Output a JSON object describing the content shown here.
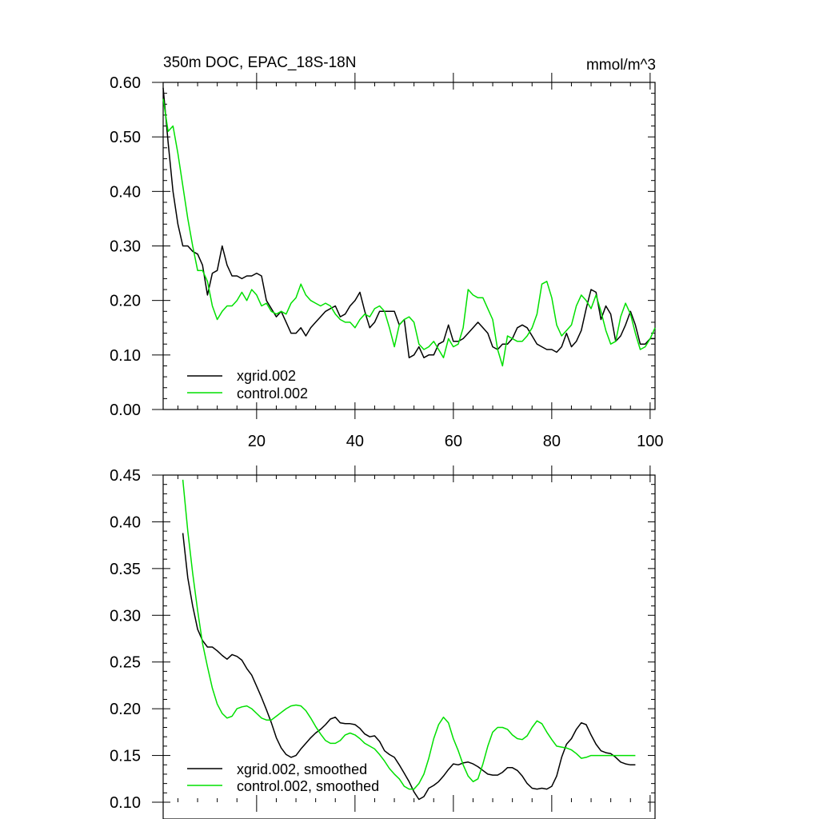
{
  "chart_data": [
    {
      "type": "line",
      "title": "350m DOC, EPAC_18S-18N",
      "units": "mmol/m^3",
      "xlim": [
        1,
        101
      ],
      "ylim": [
        0.0,
        0.6
      ],
      "grid": false,
      "legend_position": "bottom-left",
      "yticks": [
        "0.00",
        "0.10",
        "0.20",
        "0.30",
        "0.40",
        "0.50",
        "0.60"
      ],
      "xticks": [
        "20",
        "40",
        "60",
        "80",
        "100"
      ],
      "series": [
        {
          "name": "xgrid.002",
          "color": "#000000",
          "x": [
            1,
            2,
            3,
            4,
            5,
            6,
            7,
            8,
            9,
            10,
            11,
            12,
            13,
            14,
            15,
            16,
            17,
            18,
            19,
            20,
            21,
            22,
            23,
            24,
            25,
            26,
            27,
            28,
            29,
            30,
            31,
            32,
            33,
            34,
            35,
            36,
            37,
            38,
            39,
            40,
            41,
            42,
            43,
            44,
            45,
            46,
            47,
            48,
            49,
            50,
            51,
            52,
            53,
            54,
            55,
            56,
            57,
            58,
            59,
            60,
            61,
            62,
            63,
            64,
            65,
            66,
            67,
            68,
            69,
            70,
            71,
            72,
            73,
            74,
            75,
            76,
            77,
            78,
            79,
            80,
            81,
            82,
            83,
            84,
            85,
            86,
            87,
            88,
            89,
            90,
            91,
            92,
            93,
            94,
            95,
            96,
            97,
            98,
            99,
            100,
            101
          ],
          "values": [
            0.59,
            0.49,
            0.4,
            0.34,
            0.3,
            0.3,
            0.29,
            0.285,
            0.265,
            0.21,
            0.25,
            0.255,
            0.3,
            0.265,
            0.245,
            0.245,
            0.24,
            0.245,
            0.245,
            0.25,
            0.245,
            0.2,
            0.185,
            0.17,
            0.18,
            0.16,
            0.14,
            0.14,
            0.15,
            0.135,
            0.15,
            0.16,
            0.17,
            0.18,
            0.185,
            0.19,
            0.17,
            0.175,
            0.19,
            0.2,
            0.215,
            0.18,
            0.15,
            0.16,
            0.18,
            0.18,
            0.18,
            0.18,
            0.155,
            0.165,
            0.095,
            0.1,
            0.115,
            0.095,
            0.1,
            0.1,
            0.12,
            0.125,
            0.155,
            0.125,
            0.125,
            0.13,
            0.14,
            0.15,
            0.16,
            0.15,
            0.14,
            0.115,
            0.11,
            0.12,
            0.12,
            0.13,
            0.15,
            0.155,
            0.15,
            0.135,
            0.12,
            0.115,
            0.11,
            0.11,
            0.105,
            0.115,
            0.14,
            0.115,
            0.125,
            0.145,
            0.185,
            0.22,
            0.215,
            0.165,
            0.19,
            0.175,
            0.125,
            0.135,
            0.155,
            0.18,
            0.155,
            0.12,
            0.12,
            0.13,
            0.13
          ]
        },
        {
          "name": "control.002",
          "color": "#00e000",
          "x": [
            1,
            2,
            3,
            4,
            5,
            6,
            7,
            8,
            9,
            10,
            11,
            12,
            13,
            14,
            15,
            16,
            17,
            18,
            19,
            20,
            21,
            22,
            23,
            24,
            25,
            26,
            27,
            28,
            29,
            30,
            31,
            32,
            33,
            34,
            35,
            36,
            37,
            38,
            39,
            40,
            41,
            42,
            43,
            44,
            45,
            46,
            47,
            48,
            49,
            50,
            51,
            52,
            53,
            54,
            55,
            56,
            57,
            58,
            59,
            60,
            61,
            62,
            63,
            64,
            65,
            66,
            67,
            68,
            69,
            70,
            71,
            72,
            73,
            74,
            75,
            76,
            77,
            78,
            79,
            80,
            81,
            82,
            83,
            84,
            85,
            86,
            87,
            88,
            89,
            90,
            91,
            92,
            93,
            94,
            95,
            96,
            97,
            98,
            99,
            100,
            101
          ],
          "values": [
            0.57,
            0.51,
            0.52,
            0.47,
            0.41,
            0.35,
            0.3,
            0.255,
            0.255,
            0.235,
            0.19,
            0.165,
            0.18,
            0.19,
            0.19,
            0.2,
            0.215,
            0.2,
            0.22,
            0.21,
            0.19,
            0.195,
            0.18,
            0.175,
            0.18,
            0.175,
            0.195,
            0.205,
            0.23,
            0.21,
            0.2,
            0.195,
            0.19,
            0.195,
            0.19,
            0.175,
            0.165,
            0.16,
            0.16,
            0.15,
            0.165,
            0.175,
            0.17,
            0.185,
            0.19,
            0.18,
            0.15,
            0.115,
            0.155,
            0.165,
            0.17,
            0.16,
            0.12,
            0.11,
            0.115,
            0.125,
            0.11,
            0.095,
            0.13,
            0.115,
            0.12,
            0.15,
            0.22,
            0.21,
            0.205,
            0.205,
            0.185,
            0.165,
            0.11,
            0.08,
            0.135,
            0.13,
            0.125,
            0.125,
            0.135,
            0.15,
            0.175,
            0.23,
            0.235,
            0.205,
            0.155,
            0.135,
            0.145,
            0.155,
            0.19,
            0.21,
            0.2,
            0.185,
            0.21,
            0.18,
            0.145,
            0.12,
            0.125,
            0.17,
            0.195,
            0.175,
            0.14,
            0.11,
            0.115,
            0.13,
            0.15
          ]
        }
      ]
    },
    {
      "type": "line",
      "xlim": [
        1,
        101
      ],
      "ylim": [
        0.1,
        0.45
      ],
      "grid": false,
      "legend_position": "bottom-left",
      "yticks": [
        "0.10",
        "0.15",
        "0.20",
        "0.25",
        "0.30",
        "0.35",
        "0.40",
        "0.45"
      ],
      "series": [
        {
          "name": "xgrid.002, smoothed",
          "color": "#000000",
          "x": [
            5,
            6,
            7,
            8,
            9,
            10,
            11,
            12,
            13,
            14,
            15,
            16,
            17,
            18,
            19,
            20,
            21,
            22,
            23,
            24,
            25,
            26,
            27,
            28,
            29,
            30,
            31,
            32,
            33,
            34,
            35,
            36,
            37,
            38,
            39,
            40,
            41,
            42,
            43,
            44,
            45,
            46,
            47,
            48,
            49,
            50,
            51,
            52,
            53,
            54,
            55,
            56,
            57,
            58,
            59,
            60,
            61,
            62,
            63,
            64,
            65,
            66,
            67,
            68,
            69,
            70,
            71,
            72,
            73,
            74,
            75,
            76,
            77,
            78,
            79,
            80,
            81,
            82,
            83,
            84,
            85,
            86,
            87,
            88,
            89,
            90,
            91,
            92,
            93,
            94,
            95,
            96,
            97
          ],
          "values": [
            0.388,
            0.34,
            0.31,
            0.285,
            0.273,
            0.266,
            0.266,
            0.262,
            0.257,
            0.253,
            0.258,
            0.256,
            0.252,
            0.243,
            0.236,
            0.224,
            0.212,
            0.199,
            0.185,
            0.169,
            0.158,
            0.151,
            0.148,
            0.15,
            0.157,
            0.163,
            0.169,
            0.174,
            0.178,
            0.183,
            0.189,
            0.191,
            0.185,
            0.184,
            0.184,
            0.183,
            0.179,
            0.173,
            0.17,
            0.171,
            0.165,
            0.155,
            0.151,
            0.148,
            0.14,
            0.131,
            0.122,
            0.111,
            0.103,
            0.106,
            0.115,
            0.118,
            0.122,
            0.128,
            0.135,
            0.141,
            0.14,
            0.142,
            0.143,
            0.141,
            0.138,
            0.134,
            0.13,
            0.129,
            0.129,
            0.132,
            0.137,
            0.137,
            0.134,
            0.128,
            0.12,
            0.115,
            0.114,
            0.115,
            0.114,
            0.117,
            0.128,
            0.148,
            0.162,
            0.168,
            0.178,
            0.185,
            0.183,
            0.172,
            0.162,
            0.155,
            0.153,
            0.152,
            0.148,
            0.143,
            0.141,
            0.14,
            0.14
          ]
        },
        {
          "name": "control.002, smoothed",
          "color": "#00e000",
          "x": [
            5,
            6,
            7,
            8,
            9,
            10,
            11,
            12,
            13,
            14,
            15,
            16,
            17,
            18,
            19,
            20,
            21,
            22,
            23,
            24,
            25,
            26,
            27,
            28,
            29,
            30,
            31,
            32,
            33,
            34,
            35,
            36,
            37,
            38,
            39,
            40,
            41,
            42,
            43,
            44,
            45,
            46,
            47,
            48,
            49,
            50,
            51,
            52,
            53,
            54,
            55,
            56,
            57,
            58,
            59,
            60,
            61,
            62,
            63,
            64,
            65,
            66,
            67,
            68,
            69,
            70,
            71,
            72,
            73,
            74,
            75,
            76,
            77,
            78,
            79,
            80,
            81,
            82,
            83,
            84,
            85,
            86,
            87,
            88,
            89,
            90,
            91,
            92,
            93,
            94,
            95,
            96,
            97
          ],
          "values": [
            0.445,
            0.39,
            0.345,
            0.305,
            0.27,
            0.245,
            0.222,
            0.205,
            0.195,
            0.19,
            0.192,
            0.2,
            0.202,
            0.203,
            0.2,
            0.195,
            0.19,
            0.188,
            0.188,
            0.192,
            0.196,
            0.2,
            0.203,
            0.204,
            0.203,
            0.198,
            0.19,
            0.181,
            0.173,
            0.166,
            0.163,
            0.163,
            0.166,
            0.172,
            0.174,
            0.172,
            0.168,
            0.163,
            0.16,
            0.157,
            0.151,
            0.144,
            0.136,
            0.13,
            0.125,
            0.117,
            0.114,
            0.114,
            0.12,
            0.13,
            0.147,
            0.168,
            0.183,
            0.191,
            0.185,
            0.168,
            0.155,
            0.14,
            0.128,
            0.122,
            0.125,
            0.141,
            0.16,
            0.175,
            0.18,
            0.18,
            0.178,
            0.172,
            0.168,
            0.167,
            0.171,
            0.18,
            0.187,
            0.184,
            0.175,
            0.167,
            0.16,
            0.159,
            0.158,
            0.156,
            0.152,
            0.147,
            0.148,
            0.15,
            0.15,
            0.15,
            0.15,
            0.15,
            0.15,
            0.15,
            0.15,
            0.15,
            0.15
          ]
        }
      ]
    }
  ]
}
